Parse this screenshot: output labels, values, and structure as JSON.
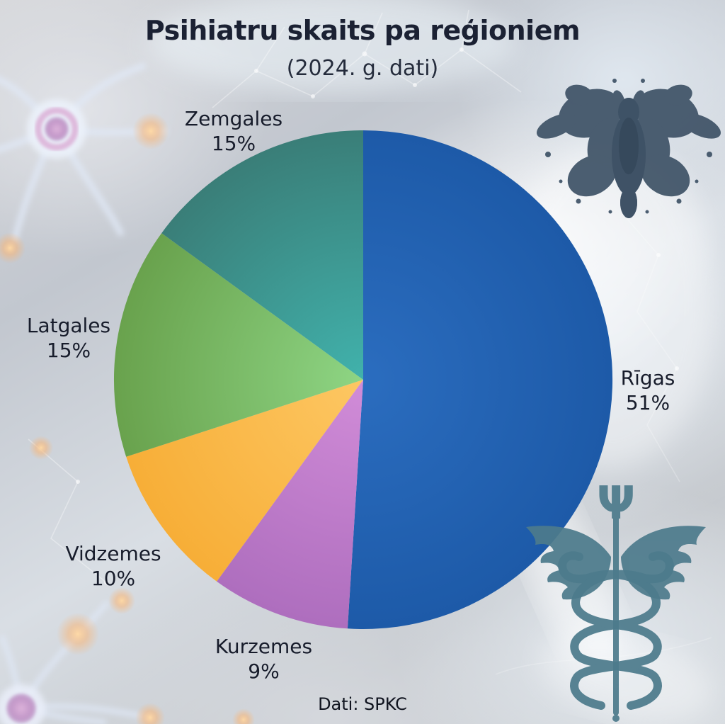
{
  "chart_data": {
    "type": "pie",
    "title": "Psihiatru skaits pa reģioniem",
    "subtitle": "(2024. g. dati)",
    "source": "Dati: SPKC",
    "start_angle_deg": 0,
    "direction": "clockwise",
    "legend_position": "around-slices",
    "slices": [
      {
        "label": "Rīgas",
        "value": 51,
        "pct_label": "51%",
        "color_center": "#2b6dbf",
        "color_edge": "#1d5aa8"
      },
      {
        "label": "Kurzemes",
        "value": 9,
        "pct_label": "9%",
        "color_center": "#d18cd8",
        "color_edge": "#ae6ebe"
      },
      {
        "label": "Vidzemes",
        "value": 10,
        "pct_label": "10%",
        "color_center": "#fdc763",
        "color_edge": "#f7ae37"
      },
      {
        "label": "Latgales",
        "value": 15,
        "pct_label": "15%",
        "color_center": "#8ed584",
        "color_edge": "#69a24d"
      },
      {
        "label": "Zemgales",
        "value": 15,
        "pct_label": "15%",
        "color_center": "#41b2ac",
        "color_edge": "#3a7e78"
      }
    ],
    "text_color": "#171c2b"
  },
  "decor": {
    "psi_glyph": "Ψ",
    "rorschach_color": "#3e5266",
    "caduceus_color": "#4d7b8c",
    "background_theme": "neurons-and-plexus"
  }
}
